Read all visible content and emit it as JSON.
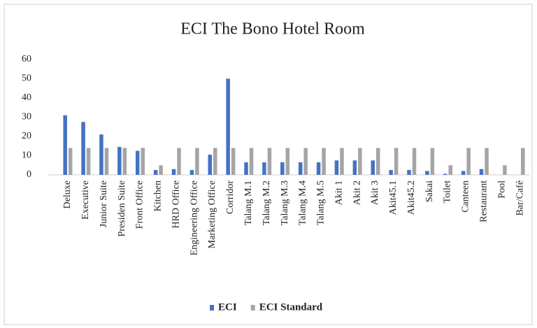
{
  "chart_data": {
    "type": "bar",
    "title": "ECI The Bono Hotel Room",
    "categories": [
      "Deluxe",
      "Executive",
      "Junior Suite",
      "Presiden Suite",
      "Front Office",
      "Kitchen",
      "HRD Office",
      "Engineering Office",
      "Marketing Office",
      "Corridor",
      "Talang M.1",
      "Talang M.2",
      "Talang M.3",
      "Talang M.4",
      "Talang M.5",
      "Akit 1",
      "Akit 2",
      "Akit 3",
      "Akit45.1",
      "Akit45.2",
      "Sakai",
      "Toilet",
      "Canteen",
      "Restaurant",
      "Pool",
      "Bar/Café"
    ],
    "series": [
      {
        "name": "ECI",
        "color": "#4472c4",
        "values": [
          31,
          27.5,
          21,
          14.5,
          12.5,
          2.5,
          3,
          2.5,
          10.5,
          50,
          6.5,
          6.5,
          6.5,
          6.5,
          6.5,
          7.5,
          7.5,
          7.5,
          2.5,
          2.5,
          2,
          0.5,
          2,
          3,
          0,
          0
        ]
      },
      {
        "name": "ECI Standard",
        "color": "#a5a5a5",
        "values": [
          14,
          14,
          14,
          14,
          14,
          5,
          14,
          14,
          14,
          14,
          14,
          14,
          14,
          14,
          14,
          14,
          14,
          14,
          14,
          14,
          14,
          5,
          14,
          14,
          5,
          14
        ]
      }
    ],
    "ylim": [
      0,
      60
    ],
    "yticks": [
      0,
      10,
      20,
      30,
      40,
      50,
      60
    ],
    "grid": false,
    "legend": "bottom"
  }
}
